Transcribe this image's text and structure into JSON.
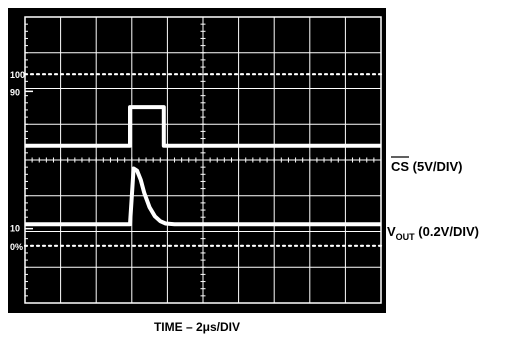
{
  "chart_data": {
    "type": "line",
    "xlabel": "TIME – 2μs/DIV",
    "x_divisions": 10,
    "y_divisions": 8,
    "reference_labels": [
      "100",
      "90",
      "10",
      "0%"
    ],
    "grid": true,
    "series": [
      {
        "name": "CS (5V/DIV)",
        "label_main": "CS",
        "label_scale": " (5V/DIV)",
        "overline": true,
        "x": [
          0,
          2.95,
          2.95,
          3.9,
          3.9,
          10
        ],
        "y": [
          0,
          0,
          1.08,
          1.08,
          0,
          0
        ]
      },
      {
        "name": "VOUT (0.2V/DIV)",
        "label_main": "V",
        "label_sub": "OUT",
        "label_scale": " (0.2V/DIV)",
        "x": [
          0,
          2.95,
          3.05,
          3.15,
          3.25,
          3.35,
          3.5,
          3.65,
          3.8,
          3.95,
          4.2,
          10
        ],
        "y": [
          0,
          0,
          1.25,
          1.2,
          1.0,
          0.7,
          0.38,
          0.18,
          0.07,
          0.02,
          0,
          0
        ]
      }
    ]
  }
}
